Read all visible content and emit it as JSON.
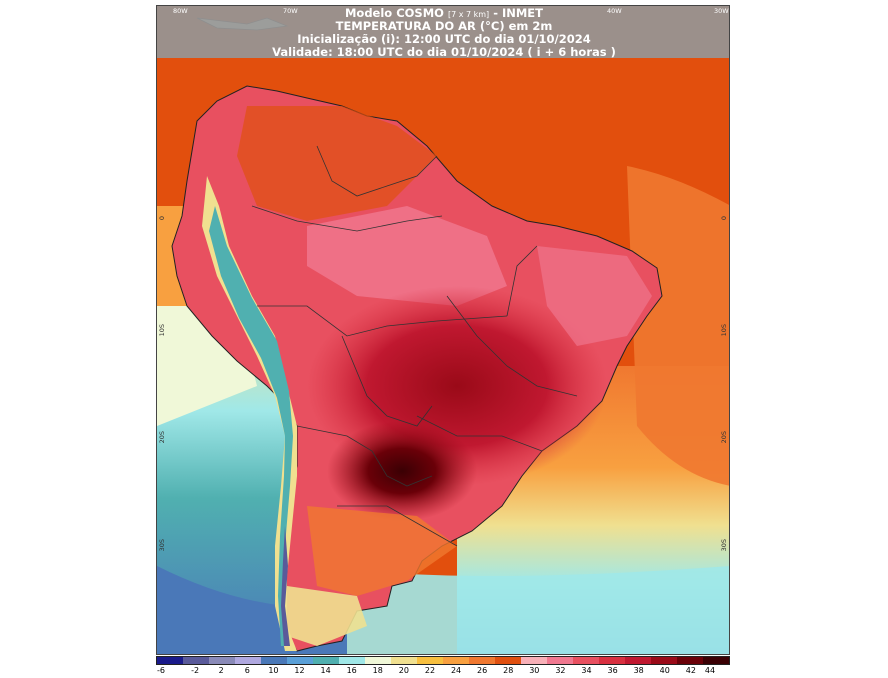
{
  "header": {
    "line1_main": "Modelo COSMO",
    "line1_small": "[7 x 7 km]",
    "line1_suffix": "- INMET",
    "line2": "TEMPERATURA DO AR (°C) em 2m",
    "line3": "Inicialização (i): 12:00 UTC do dia 01/10/2024",
    "line4": "Validade: 18:00 UTC do dia 01/10/2024 ( i + 6 horas )"
  },
  "longitude_labels": [
    "80W",
    "70W",
    "40W",
    "30W"
  ],
  "latitude_labels": [
    "0",
    "10S",
    "20S",
    "30S"
  ],
  "legend": {
    "ticks": [
      "-6",
      "-2",
      "2",
      "6",
      "10",
      "12",
      "14",
      "16",
      "18",
      "20",
      "22",
      "24",
      "26",
      "28",
      "30",
      "32",
      "34",
      "36",
      "38",
      "40",
      "42",
      "44"
    ],
    "colors": [
      "#1a1a8a",
      "#5a5a9a",
      "#8a8ab8",
      "#b0a8e0",
      "#4a78b8",
      "#5aa0d8",
      "#50b0b0",
      "#a0e8e8",
      "#f0f8d8",
      "#f0e090",
      "#f8c040",
      "#f8a040",
      "#f07830",
      "#e05010",
      "#f8b0b8",
      "#f07890",
      "#e85060",
      "#d83040",
      "#c01830",
      "#9a0a18",
      "#6a0008",
      "#3a0004"
    ]
  },
  "colors": {
    "ocean_north": "#e24f0d",
    "ocean_south_cold": "#5aa0d8",
    "land_hot": "#d83040",
    "land_extreme": "#6a0008",
    "andes_cold": "#4a78b8"
  }
}
